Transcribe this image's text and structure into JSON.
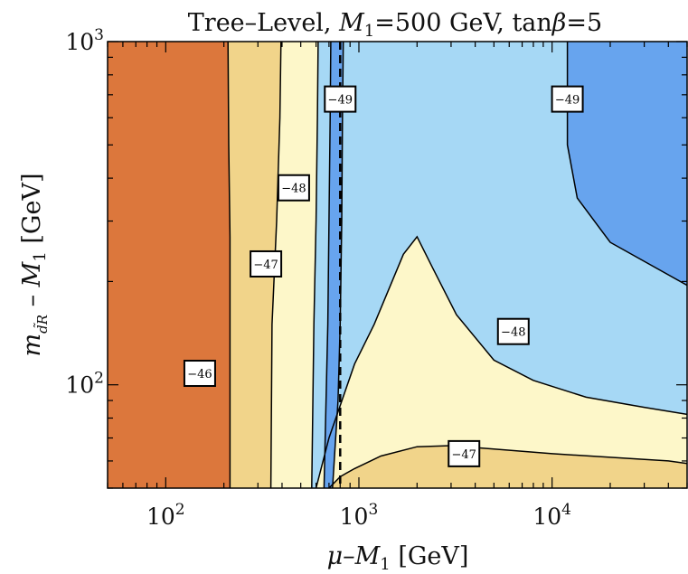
{
  "chart_data": {
    "type": "contour",
    "title_parts": {
      "pre": "Tree–Level, ",
      "var": "M",
      "sub": "1",
      "mid": "=500 GeV, tan",
      "greek": "β",
      "post": "=5"
    },
    "xlabel_parts": {
      "pre": "μ–",
      "var": "M",
      "sub": "1",
      "post": " [GeV]"
    },
    "ylabel_parts": {
      "var": "m",
      "sub": "d̃R",
      "mid": " – ",
      "var2": "M",
      "sub2": "1",
      "post": " [GeV]"
    },
    "x_scale": "log",
    "y_scale": "log",
    "xlim": [
      50,
      50000
    ],
    "ylim": [
      50,
      1000
    ],
    "x_ticks": [
      {
        "value": 100,
        "mant": "10",
        "exp": "2"
      },
      {
        "value": 1000,
        "mant": "10",
        "exp": "3"
      },
      {
        "value": 10000,
        "mant": "10",
        "exp": "4"
      }
    ],
    "y_ticks": [
      {
        "value": 100,
        "mant": "10",
        "exp": "2"
      },
      {
        "value": 1000,
        "mant": "10",
        "exp": "3"
      }
    ],
    "dashed_line_x": 800,
    "colors": {
      "band_lt46": "#dc773c",
      "band_46_47": "#f1d48a",
      "band_47_48": "#fdf7c9",
      "band_48_49": "#a6d8f5",
      "band_lt49": "#67a4ee",
      "contour_line": "#000000"
    },
    "regions": [
      {
        "fill": "band_46_47",
        "points": [
          [
            215,
            50
          ],
          [
            215,
            270
          ],
          [
            212,
            500
          ],
          [
            210,
            1000
          ],
          [
            50000,
            1000
          ],
          [
            50000,
            50
          ]
        ]
      },
      {
        "fill": "band_47_48",
        "points": [
          [
            350,
            50
          ],
          [
            355,
            150
          ],
          [
            375,
            300
          ],
          [
            390,
            600
          ],
          [
            395,
            1000
          ],
          [
            50000,
            1000
          ],
          [
            50000,
            59
          ],
          [
            40000,
            60
          ],
          [
            20000,
            61.5
          ],
          [
            10000,
            63
          ],
          [
            5000,
            65
          ],
          [
            3000,
            66.5
          ],
          [
            2000,
            66
          ],
          [
            1300,
            62
          ],
          [
            950,
            57
          ],
          [
            800,
            54
          ],
          [
            700,
            50
          ]
        ]
      },
      {
        "fill": "band_48_49",
        "points": [
          [
            570,
            50
          ],
          [
            585,
            150
          ],
          [
            600,
            300
          ],
          [
            610,
            600
          ],
          [
            615,
            1000
          ],
          [
            50000,
            1000
          ],
          [
            50000,
            82
          ],
          [
            30000,
            86
          ],
          [
            15000,
            92
          ],
          [
            8000,
            103
          ],
          [
            5000,
            118
          ],
          [
            3200,
            160
          ],
          [
            2400,
            220
          ],
          [
            2000,
            270
          ],
          [
            1700,
            240
          ],
          [
            1200,
            150
          ],
          [
            950,
            115
          ],
          [
            700,
            70
          ],
          [
            600,
            50
          ]
        ]
      },
      {
        "fill": "band_lt49",
        "points": [
          [
            660,
            50
          ],
          [
            690,
            150
          ],
          [
            700,
            300
          ],
          [
            710,
            600
          ],
          [
            715,
            1000
          ],
          [
            830,
            1000
          ],
          [
            822,
            600
          ],
          [
            815,
            300
          ],
          [
            800,
            150
          ],
          [
            780,
            90
          ],
          [
            730,
            50
          ]
        ]
      },
      {
        "fill": "band_lt49",
        "points": [
          [
            12000,
            1000
          ],
          [
            12000,
            500
          ],
          [
            13500,
            350
          ],
          [
            20000,
            260
          ],
          [
            50000,
            195
          ],
          [
            50000,
            1000
          ]
        ]
      }
    ],
    "contour_lines": [
      {
        "level": -46,
        "points": [
          [
            215,
            50
          ],
          [
            215,
            270
          ],
          [
            212,
            500
          ],
          [
            210,
            1000
          ]
        ]
      },
      {
        "level": -47,
        "points": [
          [
            350,
            50
          ],
          [
            355,
            150
          ],
          [
            375,
            300
          ],
          [
            390,
            600
          ],
          [
            395,
            1000
          ]
        ]
      },
      {
        "level": -48,
        "points": [
          [
            570,
            50
          ],
          [
            585,
            150
          ],
          [
            600,
            300
          ],
          [
            610,
            600
          ],
          [
            615,
            1000
          ]
        ]
      },
      {
        "level": -49,
        "points": [
          [
            660,
            50
          ],
          [
            690,
            150
          ],
          [
            700,
            300
          ],
          [
            710,
            600
          ],
          [
            715,
            1000
          ]
        ]
      },
      {
        "level": -49,
        "points": [
          [
            730,
            50
          ],
          [
            780,
            90
          ],
          [
            800,
            150
          ],
          [
            815,
            300
          ],
          [
            822,
            600
          ],
          [
            830,
            1000
          ]
        ]
      },
      {
        "level": -47,
        "points": [
          [
            700,
            50
          ],
          [
            800,
            54
          ],
          [
            950,
            57
          ],
          [
            1300,
            62
          ],
          [
            2000,
            66
          ],
          [
            3000,
            66.5
          ],
          [
            5000,
            65
          ],
          [
            10000,
            63
          ],
          [
            20000,
            61.5
          ],
          [
            40000,
            60
          ],
          [
            50000,
            59
          ]
        ]
      },
      {
        "level": -48,
        "points": [
          [
            600,
            50
          ],
          [
            700,
            70
          ],
          [
            950,
            115
          ],
          [
            1200,
            150
          ],
          [
            1700,
            240
          ],
          [
            2000,
            270
          ],
          [
            2400,
            220
          ],
          [
            3200,
            160
          ],
          [
            5000,
            118
          ],
          [
            8000,
            103
          ],
          [
            15000,
            92
          ],
          [
            30000,
            86
          ],
          [
            50000,
            82
          ]
        ]
      },
      {
        "level": -49,
        "points": [
          [
            12000,
            1000
          ],
          [
            12000,
            500
          ],
          [
            13500,
            350
          ],
          [
            20000,
            260
          ],
          [
            50000,
            195
          ]
        ]
      }
    ],
    "contour_labels": [
      {
        "text": "−46",
        "x": 150,
        "y": 108
      },
      {
        "text": "−47",
        "x": 330,
        "y": 225
      },
      {
        "text": "−48",
        "x": 460,
        "y": 375
      },
      {
        "text": "−49",
        "x": 800,
        "y": 680
      },
      {
        "text": "−49",
        "x": 12000,
        "y": 680
      },
      {
        "text": "−48",
        "x": 6300,
        "y": 143
      },
      {
        "text": "−47",
        "x": 3500,
        "y": 63
      }
    ]
  }
}
